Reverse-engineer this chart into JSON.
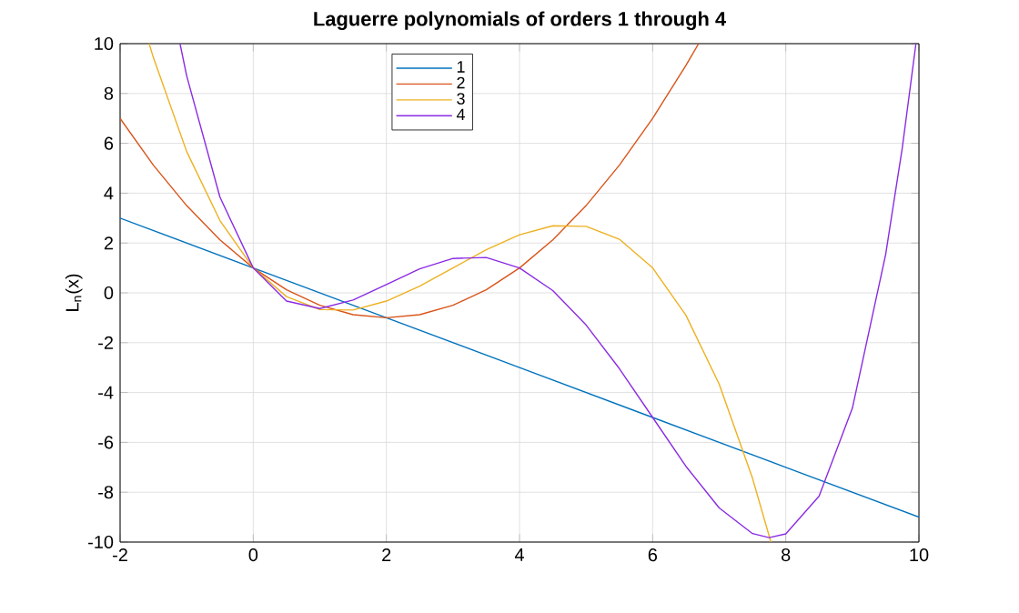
{
  "chart_data": {
    "type": "line",
    "title": "Laguerre polynomials of orders 1 through 4",
    "ylabel": "L$_{n}$(x)",
    "xlim": [
      -2,
      10
    ],
    "ylim": [
      -10,
      10
    ],
    "xticks": [
      -2,
      0,
      2,
      4,
      6,
      8,
      10
    ],
    "yticks": [
      -10,
      -8,
      -6,
      -4,
      -2,
      0,
      2,
      4,
      6,
      8,
      10
    ],
    "grid": true,
    "legend": "top",
    "line_style": "solid",
    "marker": "none",
    "series": [
      {
        "name": "1",
        "color": "#0072bd",
        "x": [
          -2,
          0,
          2,
          4,
          6,
          8,
          10
        ],
        "values": [
          3,
          1,
          -1,
          -3,
          -5,
          -7,
          -9
        ]
      },
      {
        "name": "2",
        "color": "#d95319",
        "x": [
          -2,
          -1.5,
          -1,
          -0.5,
          0,
          0.5,
          1,
          1.5,
          2,
          2.5,
          3,
          3.5,
          4,
          4.5,
          5,
          5.5,
          6,
          6.5,
          6.69
        ],
        "values": [
          7,
          5.125,
          3.5,
          2.125,
          1,
          0.125,
          -0.5,
          -0.875,
          -1,
          -0.875,
          -0.5,
          0.125,
          1,
          2.125,
          3.5,
          5.125,
          7,
          9.125,
          10
        ]
      },
      {
        "name": "3",
        "color": "#edb120",
        "x": [
          -1.564,
          -1.5,
          -1,
          -0.5,
          0,
          0.5,
          1,
          1.5,
          2,
          2.5,
          3,
          3.5,
          4,
          4.5,
          5,
          5.5,
          6,
          6.5,
          7,
          7.5,
          7.776
        ],
        "values": [
          10,
          9.44,
          5.67,
          2.9,
          1,
          -0.15,
          -0.67,
          -0.69,
          -0.33,
          0.27,
          1,
          1.73,
          2.33,
          2.69,
          2.67,
          2.15,
          1,
          -0.9,
          -3.67,
          -7.44,
          -10
        ]
      },
      {
        "name": "4",
        "color": "#8a2be2",
        "x": [
          -1.1,
          -1,
          -0.5,
          0,
          0.5,
          1,
          1.5,
          2,
          2.5,
          3,
          3.5,
          4,
          4.5,
          5,
          5.5,
          6,
          6.5,
          7,
          7.5,
          7.75,
          8,
          8.5,
          9,
          9.5,
          9.75,
          9.955
        ],
        "values": [
          10,
          8.71,
          3.84,
          1,
          -0.33,
          -0.63,
          -0.29,
          0.33,
          0.96,
          1.38,
          1.42,
          1,
          0.09,
          -1.29,
          -3.04,
          -5,
          -6.96,
          -8.63,
          -9.66,
          -9.82,
          -9.67,
          -8.16,
          -4.63,
          1.54,
          5.82,
          10
        ]
      }
    ]
  }
}
